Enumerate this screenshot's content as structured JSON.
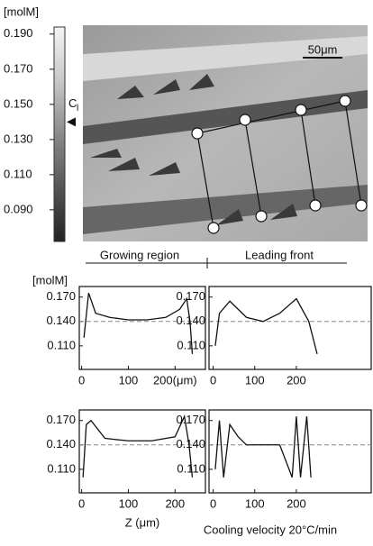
{
  "colorbar": {
    "label": "[molM]",
    "ylim": [
      0.072,
      0.194
    ],
    "ticks": [
      {
        "value": 0.19,
        "label": "0.190"
      },
      {
        "value": 0.17,
        "label": "0.170"
      },
      {
        "value": 0.15,
        "label": "0.150"
      },
      {
        "value": 0.13,
        "label": "0.130"
      },
      {
        "value": 0.11,
        "label": "0.110"
      },
      {
        "value": 0.09,
        "label": "0.090"
      }
    ],
    "marker": {
      "label": "C",
      "subscript": "l",
      "value": 0.14
    }
  },
  "micrograph": {
    "scale_bar": "50μm",
    "regions": [
      "Growing region",
      "Leading front"
    ]
  },
  "caption": "Cooling velocity 20°C/min",
  "chart_data": [
    {
      "type": "line",
      "ylabel": "[molM]",
      "xlim": [
        -5,
        265
      ],
      "ylim": [
        0.081,
        0.183
      ],
      "xticks": [
        0,
        100,
        {
          "value": 200,
          "label": "200(μm)"
        }
      ],
      "yticks": [
        {
          "value": 0.17,
          "label": "0.170"
        },
        {
          "value": 0.14,
          "label": "0.140"
        },
        {
          "value": 0.11,
          "label": "0.110"
        }
      ],
      "reference": 0.14,
      "x": [
        5,
        15,
        30,
        60,
        100,
        140,
        180,
        210,
        225,
        232,
        237
      ],
      "values": [
        0.12,
        0.175,
        0.15,
        0.145,
        0.142,
        0.142,
        0.145,
        0.155,
        0.168,
        0.14,
        0.1
      ]
    },
    {
      "type": "line",
      "xlim": [
        -10,
        380
      ],
      "ylim": [
        0.081,
        0.183
      ],
      "xticks": [
        0,
        100,
        200
      ],
      "yticks": [
        {
          "value": 0.17,
          "label": "0.170"
        },
        {
          "value": 0.14,
          "label": "0.140"
        },
        {
          "value": 0.11,
          "label": "0.110"
        }
      ],
      "reference": 0.14,
      "x": [
        5,
        15,
        40,
        80,
        120,
        160,
        200,
        230,
        250
      ],
      "values": [
        0.11,
        0.15,
        0.165,
        0.145,
        0.14,
        0.15,
        0.168,
        0.14,
        0.1
      ]
    },
    {
      "type": "line",
      "xlabel": "Z (μm)",
      "xlim": [
        -5,
        265
      ],
      "ylim": [
        0.081,
        0.183
      ],
      "xticks": [
        0,
        100,
        200
      ],
      "yticks": [
        {
          "value": 0.17,
          "label": "0.170"
        },
        {
          "value": 0.14,
          "label": "0.140"
        },
        {
          "value": 0.11,
          "label": "0.110"
        }
      ],
      "reference": 0.14,
      "x": [
        3,
        10,
        20,
        50,
        100,
        150,
        200,
        220,
        230,
        237
      ],
      "values": [
        0.1,
        0.165,
        0.17,
        0.148,
        0.145,
        0.145,
        0.15,
        0.175,
        0.14,
        0.1
      ]
    },
    {
      "type": "line",
      "xlim": [
        -10,
        380
      ],
      "ylim": [
        0.081,
        0.183
      ],
      "xticks": [
        0,
        100,
        200
      ],
      "yticks": [
        {
          "value": 0.17,
          "label": "0.170"
        },
        {
          "value": 0.14,
          "label": "0.140"
        },
        {
          "value": 0.11,
          "label": "0.110"
        }
      ],
      "reference": 0.14,
      "x": [
        5,
        15,
        25,
        40,
        60,
        80,
        120,
        160,
        190,
        200,
        210,
        225,
        235
      ],
      "values": [
        0.11,
        0.17,
        0.1,
        0.165,
        0.15,
        0.14,
        0.14,
        0.14,
        0.1,
        0.175,
        0.1,
        0.175,
        0.1
      ]
    }
  ]
}
